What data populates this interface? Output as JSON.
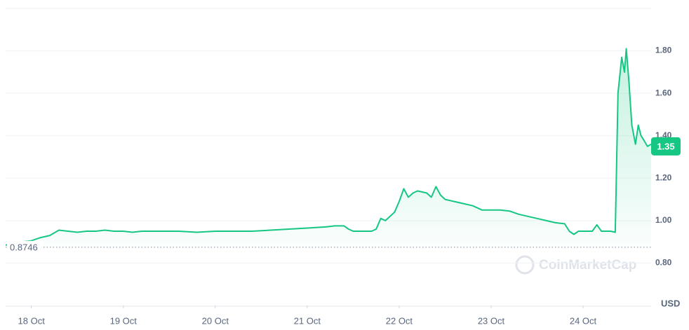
{
  "chart_data": {
    "type": "line",
    "x": [
      17.72,
      17.8,
      17.9,
      18.0,
      18.1,
      18.2,
      18.3,
      18.4,
      18.5,
      18.6,
      18.7,
      18.8,
      18.9,
      19.0,
      19.1,
      19.2,
      19.4,
      19.6,
      19.8,
      20.0,
      20.2,
      20.4,
      20.6,
      20.8,
      21.0,
      21.2,
      21.3,
      21.4,
      21.45,
      21.5,
      21.6,
      21.7,
      21.75,
      21.8,
      21.85,
      21.9,
      21.95,
      22.0,
      22.05,
      22.1,
      22.15,
      22.2,
      22.3,
      22.35,
      22.4,
      22.45,
      22.5,
      22.6,
      22.7,
      22.8,
      22.9,
      23.0,
      23.1,
      23.2,
      23.3,
      23.4,
      23.5,
      23.6,
      23.7,
      23.8,
      23.85,
      23.9,
      23.95,
      24.0,
      24.1,
      24.15,
      24.2,
      24.3,
      24.35,
      24.38,
      24.42,
      24.45,
      24.47,
      24.5,
      24.53,
      24.57,
      24.6,
      24.63,
      24.66,
      24.7,
      24.74
    ],
    "values": [
      0.885,
      0.89,
      0.9,
      0.905,
      0.92,
      0.93,
      0.955,
      0.95,
      0.945,
      0.95,
      0.95,
      0.955,
      0.95,
      0.95,
      0.945,
      0.95,
      0.95,
      0.95,
      0.945,
      0.95,
      0.95,
      0.95,
      0.955,
      0.96,
      0.965,
      0.97,
      0.975,
      0.975,
      0.96,
      0.95,
      0.95,
      0.95,
      0.96,
      1.01,
      1.0,
      1.02,
      1.04,
      1.09,
      1.15,
      1.11,
      1.13,
      1.14,
      1.13,
      1.11,
      1.16,
      1.12,
      1.1,
      1.09,
      1.08,
      1.07,
      1.05,
      1.05,
      1.05,
      1.045,
      1.03,
      1.02,
      1.01,
      1.0,
      0.99,
      0.985,
      0.95,
      0.935,
      0.95,
      0.95,
      0.95,
      0.98,
      0.95,
      0.95,
      0.945,
      1.6,
      1.77,
      1.7,
      1.81,
      1.65,
      1.45,
      1.36,
      1.45,
      1.4,
      1.38,
      1.35,
      1.36
    ],
    "color": "#16c784",
    "xlim": [
      17.72,
      24.74
    ],
    "xticks": [
      {
        "value": 18,
        "label": "18 Oct"
      },
      {
        "value": 19,
        "label": "19 Oct"
      },
      {
        "value": 20,
        "label": "20 Oct"
      },
      {
        "value": 21,
        "label": "21 Oct"
      },
      {
        "value": 22,
        "label": "22 Oct"
      },
      {
        "value": 23,
        "label": "23 Oct"
      },
      {
        "value": 24,
        "label": "24 Oct"
      }
    ],
    "ylim": [
      0.6,
      2.0
    ],
    "yticks": [
      {
        "value": 0.8,
        "label": "0.80"
      },
      {
        "value": 1.0,
        "label": "1.00"
      },
      {
        "value": 1.2,
        "label": "1.20"
      },
      {
        "value": 1.4,
        "label": "1.40"
      },
      {
        "value": 1.6,
        "label": "1.60"
      },
      {
        "value": 1.8,
        "label": "1.80"
      }
    ],
    "grid": true,
    "reference_line": 0.8746,
    "current_value": 1.35,
    "unit_label": "USD",
    "watermark": "CoinMarketCap"
  }
}
